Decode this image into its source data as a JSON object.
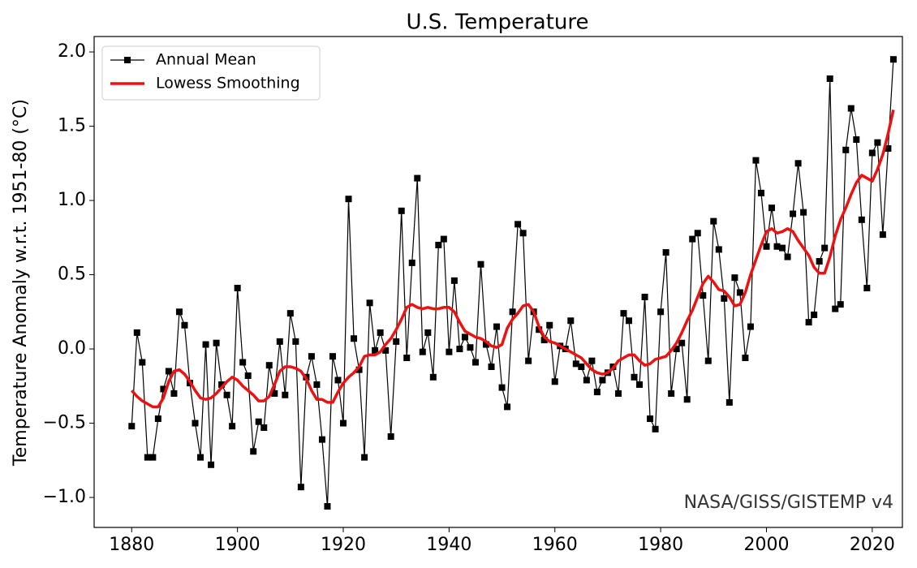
{
  "chart_data": {
    "type": "line",
    "title": "U.S. Temperature",
    "y_label": "Temperature Anomaly w.r.t. 1951-80 (°C)",
    "annotation": "NASA/GISS/GISTEMP v4",
    "x": [
      1880,
      1881,
      1882,
      1883,
      1884,
      1885,
      1886,
      1887,
      1888,
      1889,
      1890,
      1891,
      1892,
      1893,
      1894,
      1895,
      1896,
      1897,
      1898,
      1899,
      1900,
      1901,
      1902,
      1903,
      1904,
      1905,
      1906,
      1907,
      1908,
      1909,
      1910,
      1911,
      1912,
      1913,
      1914,
      1915,
      1916,
      1917,
      1918,
      1919,
      1920,
      1921,
      1922,
      1923,
      1924,
      1925,
      1926,
      1927,
      1928,
      1929,
      1930,
      1931,
      1932,
      1933,
      1934,
      1935,
      1936,
      1937,
      1938,
      1939,
      1940,
      1941,
      1942,
      1943,
      1944,
      1945,
      1946,
      1947,
      1948,
      1949,
      1950,
      1951,
      1952,
      1953,
      1954,
      1955,
      1956,
      1957,
      1958,
      1959,
      1960,
      1961,
      1962,
      1963,
      1964,
      1965,
      1966,
      1967,
      1968,
      1969,
      1970,
      1971,
      1972,
      1973,
      1974,
      1975,
      1976,
      1977,
      1978,
      1979,
      1980,
      1981,
      1982,
      1983,
      1984,
      1985,
      1986,
      1987,
      1988,
      1989,
      1990,
      1991,
      1992,
      1993,
      1994,
      1995,
      1996,
      1997,
      1998,
      1999,
      2000,
      2001,
      2002,
      2003,
      2004,
      2005,
      2006,
      2007,
      2008,
      2009,
      2010,
      2011,
      2012,
      2013,
      2014,
      2015,
      2016,
      2017,
      2018,
      2019,
      2020,
      2021,
      2022,
      2023,
      2024
    ],
    "series": [
      {
        "name": "Annual Mean",
        "color": "#000000",
        "marker": "square",
        "values": [
          -0.52,
          0.11,
          -0.09,
          -0.73,
          -0.73,
          -0.47,
          -0.27,
          -0.15,
          -0.3,
          0.25,
          0.16,
          -0.23,
          -0.5,
          -0.73,
          0.03,
          -0.78,
          0.04,
          -0.24,
          -0.31,
          -0.52,
          0.41,
          -0.09,
          -0.18,
          -0.69,
          -0.49,
          -0.53,
          -0.11,
          -0.3,
          0.05,
          -0.31,
          0.24,
          0.05,
          -0.93,
          -0.19,
          -0.05,
          -0.24,
          -0.61,
          -1.06,
          -0.05,
          -0.21,
          -0.5,
          1.01,
          0.07,
          -0.14,
          -0.73,
          0.31,
          -0.01,
          0.11,
          -0.01,
          -0.59,
          0.05,
          0.93,
          -0.06,
          0.58,
          1.15,
          -0.02,
          0.11,
          -0.19,
          0.7,
          0.74,
          -0.02,
          0.46,
          0.0,
          0.08,
          0.01,
          -0.09,
          0.57,
          0.03,
          -0.12,
          0.15,
          -0.26,
          -0.39,
          0.25,
          0.84,
          0.78,
          -0.08,
          0.25,
          0.13,
          0.06,
          0.16,
          -0.22,
          0.02,
          0.0,
          0.19,
          -0.1,
          -0.12,
          -0.21,
          -0.08,
          -0.29,
          -0.21,
          -0.16,
          -0.12,
          -0.3,
          0.24,
          0.19,
          -0.19,
          -0.24,
          0.35,
          -0.47,
          -0.54,
          0.25,
          0.65,
          -0.3,
          0.0,
          0.04,
          -0.34,
          0.74,
          0.78,
          0.36,
          -0.08,
          0.86,
          0.67,
          0.34,
          -0.36,
          0.48,
          0.38,
          -0.06,
          0.15,
          1.27,
          1.05,
          0.69,
          0.95,
          0.69,
          0.68,
          0.62,
          0.91,
          1.25,
          0.92,
          0.18,
          0.23,
          0.59,
          0.68,
          1.82,
          0.27,
          0.3,
          1.34,
          1.62,
          1.41,
          0.87,
          0.41,
          1.32,
          1.39,
          0.77,
          1.35,
          1.95
        ]
      },
      {
        "name": "Lowess Smoothing",
        "color": "#ee1111",
        "values": [
          -0.28,
          -0.32,
          -0.35,
          -0.37,
          -0.39,
          -0.39,
          -0.33,
          -0.22,
          -0.15,
          -0.14,
          -0.17,
          -0.22,
          -0.28,
          -0.33,
          -0.34,
          -0.33,
          -0.3,
          -0.26,
          -0.22,
          -0.19,
          -0.21,
          -0.25,
          -0.28,
          -0.31,
          -0.35,
          -0.35,
          -0.32,
          -0.24,
          -0.15,
          -0.12,
          -0.12,
          -0.13,
          -0.15,
          -0.2,
          -0.28,
          -0.34,
          -0.34,
          -0.36,
          -0.36,
          -0.29,
          -0.23,
          -0.19,
          -0.16,
          -0.12,
          -0.05,
          -0.04,
          -0.04,
          -0.02,
          0.03,
          0.07,
          0.13,
          0.2,
          0.28,
          0.3,
          0.28,
          0.27,
          0.28,
          0.27,
          0.27,
          0.28,
          0.28,
          0.25,
          0.18,
          0.12,
          0.1,
          0.08,
          0.07,
          0.05,
          0.02,
          0.01,
          0.03,
          0.14,
          0.2,
          0.24,
          0.29,
          0.3,
          0.25,
          0.15,
          0.08,
          0.05,
          0.04,
          0.02,
          0.0,
          -0.02,
          -0.04,
          -0.06,
          -0.1,
          -0.14,
          -0.16,
          -0.17,
          -0.16,
          -0.13,
          -0.08,
          -0.06,
          -0.04,
          -0.04,
          -0.08,
          -0.11,
          -0.1,
          -0.07,
          -0.06,
          -0.05,
          -0.01,
          0.04,
          0.11,
          0.19,
          0.26,
          0.35,
          0.44,
          0.49,
          0.45,
          0.4,
          0.39,
          0.35,
          0.29,
          0.3,
          0.38,
          0.5,
          0.6,
          0.7,
          0.79,
          0.81,
          0.78,
          0.79,
          0.81,
          0.79,
          0.73,
          0.68,
          0.63,
          0.55,
          0.51,
          0.51,
          0.62,
          0.76,
          0.87,
          0.95,
          1.04,
          1.12,
          1.17,
          1.15,
          1.13,
          1.21,
          1.31,
          1.45,
          1.61
        ]
      }
    ],
    "xlim": [
      1872.9,
      2025.7
    ],
    "xticks": [
      1880,
      1900,
      1920,
      1940,
      1960,
      1980,
      2000,
      2020
    ],
    "ylim": [
      -1.202,
      2.104
    ],
    "yticks": [
      {
        "value": -1.0,
        "label": "−1.0"
      },
      {
        "value": -0.5,
        "label": "−0.5"
      },
      {
        "value": 0.0,
        "label": "0.0"
      },
      {
        "value": 0.5,
        "label": "0.5"
      },
      {
        "value": 1.0,
        "label": "1.0"
      },
      {
        "value": 1.5,
        "label": "1.5"
      },
      {
        "value": 2.0,
        "label": "2.0"
      }
    ],
    "legend": "upper left",
    "grid": false
  }
}
